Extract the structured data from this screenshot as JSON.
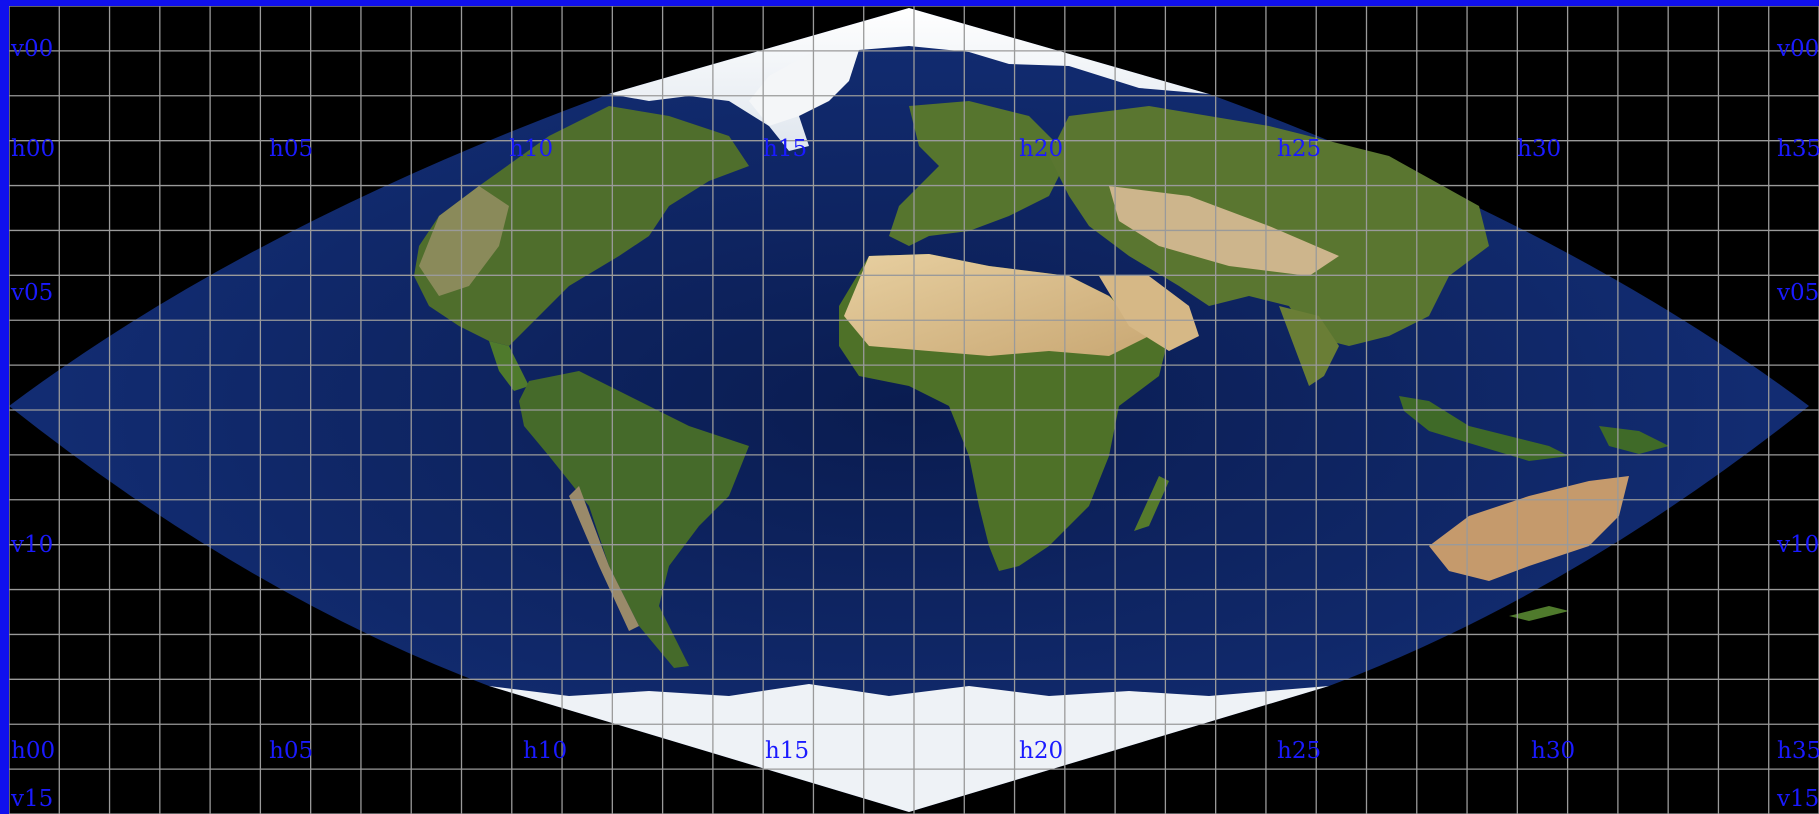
{
  "map": {
    "projection": "sinusoidal",
    "grid_color": "#9a9a9a",
    "ocean_color": "#0b1f55",
    "label_color": "#1a1aff",
    "frame_color": "#1010ee"
  },
  "tile_labels": {
    "h00": "h00",
    "h05": "h05",
    "h10": "h10",
    "h15": "h15",
    "h20": "h20",
    "h25": "h25",
    "h30": "h30",
    "h35": "h35",
    "v00": "v00",
    "v05": "v05",
    "v10": "v10",
    "v15": "v15"
  }
}
